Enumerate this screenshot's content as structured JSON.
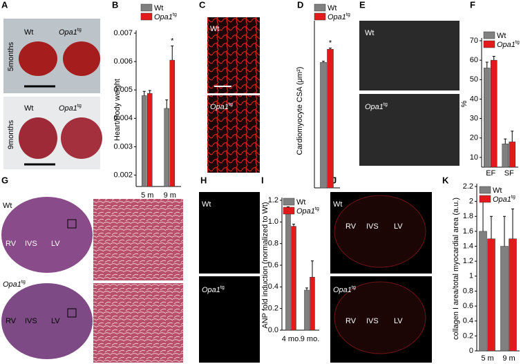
{
  "panel_letters": [
    "A",
    "B",
    "C",
    "D",
    "E",
    "F",
    "G",
    "H",
    "I",
    "J",
    "K"
  ],
  "image_panels": [
    {
      "labels": [
        {
          "text": "Wt"
        },
        {
          "text": "Opa1",
          "sup": "tg"
        },
        {
          "text": "5months"
        },
        {
          "text": "Wt"
        },
        {
          "text": "Opa1",
          "sup": "tg"
        },
        {
          "text": "9months"
        }
      ]
    },
    {
      "labels": [
        {
          "text": "Wt"
        },
        {
          "text": "Opa1",
          "sup": "tg"
        }
      ]
    },
    {
      "labels": [
        {
          "text": "Wt"
        },
        {
          "text": "Opa1",
          "sup": "tg"
        }
      ]
    },
    {
      "labels": [
        {
          "text": "Wt"
        },
        {
          "text": "Opa1",
          "sup": "tg"
        },
        {
          "text": "RV"
        },
        {
          "text": "IVS"
        },
        {
          "text": "LV"
        },
        {
          "text": "RV"
        },
        {
          "text": "IVS"
        },
        {
          "text": "LV"
        }
      ]
    },
    {
      "labels": [
        {
          "text": "Wt"
        },
        {
          "text": "Opa1",
          "sup": "tg"
        }
      ]
    },
    {
      "labels": [
        {
          "text": "Wt"
        },
        {
          "text": "Opa1",
          "sup": "tg"
        },
        {
          "text": "RV"
        },
        {
          "text": "IVS"
        },
        {
          "text": "LV"
        },
        {
          "text": "RV"
        },
        {
          "text": "IVS"
        },
        {
          "text": "LV"
        }
      ]
    }
  ],
  "chart_data": [
    {
      "type": "bar",
      "ylabel": "Heart/Body weight",
      "categories": [
        "5 m",
        "9 m"
      ],
      "series": [
        {
          "name": "Wt",
          "color": "#808080",
          "values": [
            0.0048,
            0.00435
          ],
          "errors": [
            0.00015,
            0.0003
          ]
        },
        {
          "name": "Opa1",
          "name_sup": "tg",
          "color": "#e31a1c",
          "values": [
            0.00488,
            0.00605
          ],
          "errors": [
            0.0001,
            0.0005
          ]
        }
      ],
      "ylim": [
        0.0016,
        0.007
      ],
      "yticks": [
        0.002,
        0.003,
        0.004,
        0.005,
        0.006,
        0.007
      ],
      "annotation": "*"
    },
    {
      "type": "bar",
      "ylabel": "Cardiomyocyte CSA (μm²)",
      "categories": [
        null
      ],
      "series": [
        {
          "name": "Wt",
          "color": "#808080",
          "values": [
            220
          ],
          "errors": [
            2
          ]
        },
        {
          "name": "Opa1",
          "name_sup": "tg",
          "color": "#e31a1c",
          "values": [
            243
          ],
          "errors": [
            2
          ]
        }
      ],
      "ylim": [
        0,
        270
      ],
      "annotation": "*"
    },
    {
      "type": "bar",
      "ylabel": "%",
      "categories": [
        "EF",
        "SF"
      ],
      "series": [
        {
          "name": "Wt",
          "color": "#808080",
          "values": [
            56,
            17
          ],
          "errors": [
            3,
            2.5
          ]
        },
        {
          "name": "Opa1",
          "name_sup": "tg",
          "color": "#e31a1c",
          "values": [
            60,
            18
          ],
          "errors": [
            2,
            5.5
          ]
        }
      ],
      "ylim": [
        5,
        70
      ],
      "yticks": [
        10,
        20,
        30,
        40,
        50,
        60,
        70
      ]
    },
    {
      "type": "bar",
      "ylabel": "ANP fold induction (normalized to Wt)",
      "categories": [
        "4 mo.",
        "9 mo."
      ],
      "series": [
        {
          "name": "Wt",
          "color": "#808080",
          "values": [
            1.08,
            0.37
          ],
          "errors": [
            0.06,
            0.02
          ]
        },
        {
          "name": "Opa1",
          "name_sup": "tg",
          "color": "#e31a1c",
          "values": [
            0.96,
            0.49
          ],
          "errors": [
            0.02,
            0.15
          ]
        }
      ],
      "ylim": [
        0,
        1.2
      ],
      "yticks": [
        {
          "value": 0,
          "label": "0.0"
        },
        0.2,
        0.4,
        0.6,
        0.8,
        {
          "value": 1,
          "label": "1.0"
        },
        1.2
      ]
    },
    {
      "type": "bar",
      "ylabel": "collagen I area/total myocardial area (a.u.)",
      "categories": [
        "5 m",
        "9 m"
      ],
      "series": [
        {
          "name": "Wt",
          "color": "#808080",
          "values": [
            1.6,
            1.4
          ],
          "errors": [
            0.4,
            0.4
          ]
        },
        {
          "name": "Opa1",
          "name_sup": "tg",
          "color": "#e31a1c",
          "values": [
            1.5,
            1.5
          ],
          "errors": [
            0.3,
            0.4
          ]
        }
      ],
      "ylim": [
        0,
        2.2
      ],
      "yticks": [
        0,
        0.2,
        0.4,
        0.6,
        0.8,
        1,
        1.2,
        1.4,
        1.6,
        1.8,
        2,
        2.2
      ]
    }
  ]
}
